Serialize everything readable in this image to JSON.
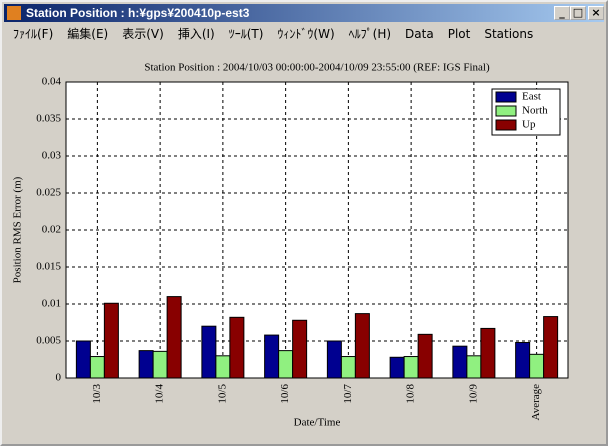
{
  "window": {
    "title": "Station Position : h:¥gps¥200410p-est3",
    "menu": [
      "ﾌｧｲﾙ(F)",
      "編集(E)",
      "表示(V)",
      "挿入(I)",
      "ﾂｰﾙ(T)",
      "ｳｨﾝﾄﾞｳ(W)",
      "ﾍﾙﾌﾟ(H)",
      "Data",
      "Plot",
      "Stations"
    ]
  },
  "chart_data": {
    "type": "bar",
    "title": "Station Position : 2004/10/03 00:00:00-2004/10/09 23:55:00 (REF: IGS Final)",
    "x_label": "Date/Time",
    "y_label": "Position RMS Error (m)",
    "categories": [
      "10/3",
      "10/4",
      "10/5",
      "10/6",
      "10/7",
      "10/8",
      "10/9",
      "Average"
    ],
    "series": [
      {
        "name": "East",
        "color": "#000090",
        "values": [
          0.005,
          0.0037,
          0.007,
          0.0058,
          0.005,
          0.0028,
          0.0043,
          0.0048
        ]
      },
      {
        "name": "North",
        "color": "#90f080",
        "values": [
          0.0029,
          0.0036,
          0.003,
          0.0037,
          0.0029,
          0.0029,
          0.003,
          0.0032
        ]
      },
      {
        "name": "Up",
        "color": "#880000",
        "values": [
          0.0101,
          0.011,
          0.0082,
          0.0078,
          0.0087,
          0.0059,
          0.0067,
          0.0083
        ]
      }
    ],
    "ylim": [
      0,
      0.04
    ],
    "yticks": [
      0,
      0.005,
      0.01,
      0.015,
      0.02,
      0.025,
      0.03,
      0.035,
      0.04
    ],
    "grid": true,
    "legend": "upper-right"
  }
}
